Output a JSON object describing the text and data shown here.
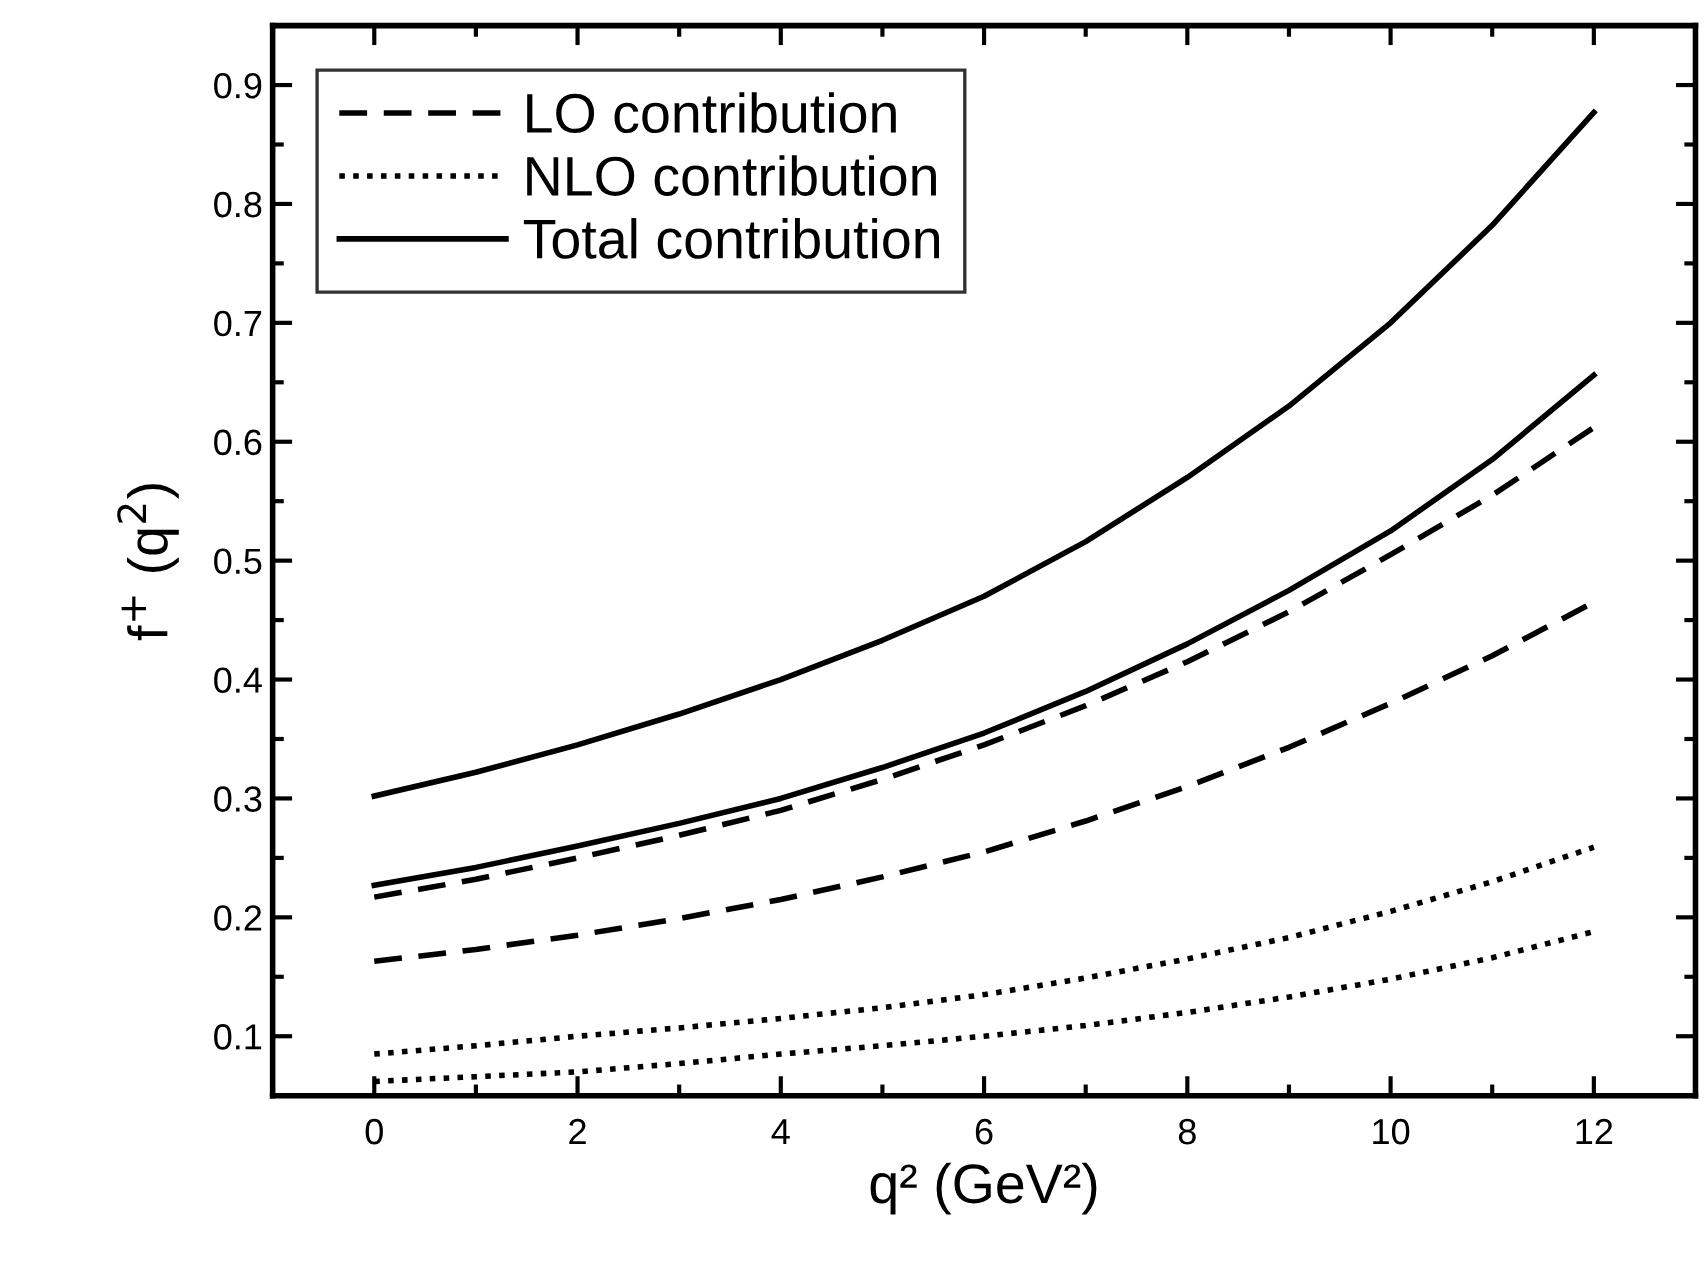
{
  "chart_data": {
    "type": "line",
    "xlabel": "q² (GeV²)",
    "ylabel": "f$^{+}$ (q$^{2}$)",
    "x": [
      0,
      1,
      2,
      3,
      4,
      5,
      6,
      7,
      8,
      9,
      10,
      11,
      12
    ],
    "xlim": [
      -1,
      13
    ],
    "xticks": [
      0,
      2,
      4,
      6,
      8,
      10,
      12
    ],
    "ylim": [
      0.05,
      0.95
    ],
    "yticks": [
      0.1,
      0.2,
      0.3,
      0.4,
      0.5,
      0.6,
      0.7,
      0.8,
      0.9
    ],
    "grid": false,
    "legend": "top left",
    "marker": "none",
    "series": [
      {
        "name": "LO contribution",
        "color": "#000000",
        "line_style": "dashed",
        "values": [
          0.217,
          0.232,
          0.25,
          0.269,
          0.29,
          0.316,
          0.345,
          0.378,
          0.415,
          0.457,
          0.505,
          0.555,
          0.612
        ]
      },
      {
        "color": "#000000",
        "line_style": "dashed",
        "values": [
          0.163,
          0.173,
          0.185,
          0.199,
          0.215,
          0.234,
          0.255,
          0.281,
          0.31,
          0.343,
          0.38,
          0.42,
          0.465
        ]
      },
      {
        "name": "NLO contribution",
        "color": "#000000",
        "line_style": "dotted",
        "values": [
          0.085,
          0.092,
          0.1,
          0.107,
          0.115,
          0.124,
          0.135,
          0.149,
          0.165,
          0.183,
          0.205,
          0.23,
          0.259
        ]
      },
      {
        "color": "#000000",
        "line_style": "dotted",
        "values": [
          0.062,
          0.066,
          0.07,
          0.077,
          0.085,
          0.092,
          0.1,
          0.109,
          0.12,
          0.133,
          0.148,
          0.166,
          0.188
        ]
      },
      {
        "name": "Total contribution",
        "color": "#000000",
        "line_style": "solid",
        "values": [
          0.302,
          0.322,
          0.345,
          0.371,
          0.4,
          0.433,
          0.47,
          0.516,
          0.57,
          0.63,
          0.7,
          0.782,
          0.877
        ]
      },
      {
        "color": "#000000",
        "line_style": "solid",
        "values": [
          0.227,
          0.242,
          0.26,
          0.279,
          0.3,
          0.326,
          0.355,
          0.39,
          0.43,
          0.475,
          0.525,
          0.585,
          0.656
        ]
      }
    ]
  }
}
